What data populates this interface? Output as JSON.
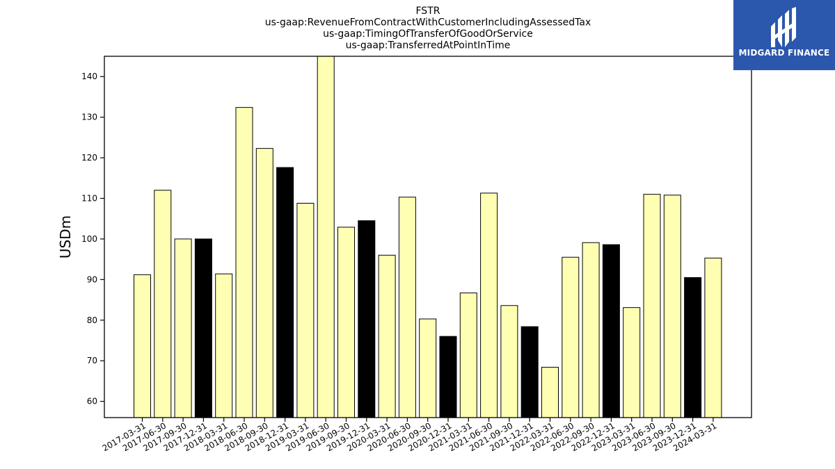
{
  "chart_data": {
    "type": "bar",
    "title_lines": [
      "FSTR",
      "us-gaap:RevenueFromContractWithCustomerIncludingAssessedTax",
      "us-gaap:TimingOfTransferOfGoodOrService",
      "us-gaap:TransferredAtPointInTime"
    ],
    "ylabel": "USDm",
    "xlabel": "",
    "ylim": [
      56,
      145
    ],
    "yticks": [
      60,
      70,
      80,
      90,
      100,
      110,
      120,
      130,
      140
    ],
    "grid": false,
    "categories": [
      "2017-03-31",
      "2017-06-30",
      "2017-09-30",
      "2017-12-31",
      "2018-03-31",
      "2018-06-30",
      "2018-09-30",
      "2018-12-31",
      "2019-03-31",
      "2019-06-30",
      "2019-09-30",
      "2019-12-31",
      "2020-03-31",
      "2020-06-30",
      "2020-09-30",
      "2020-12-31",
      "2021-03-31",
      "2021-06-30",
      "2021-09-30",
      "2021-12-31",
      "2022-03-31",
      "2022-06-30",
      "2022-09-30",
      "2022-12-31",
      "2023-03-31",
      "2023-06-30",
      "2023-09-30",
      "2023-12-31",
      "2024-03-31"
    ],
    "values": [
      91.2,
      112.0,
      100.0,
      100.0,
      91.4,
      132.4,
      122.3,
      117.6,
      108.8,
      145.0,
      102.9,
      104.5,
      96.0,
      110.3,
      80.3,
      76.0,
      86.7,
      111.3,
      83.6,
      78.4,
      68.4,
      95.5,
      99.1,
      98.6,
      83.1,
      111.0,
      110.8,
      90.5,
      95.3
    ],
    "bar_colors": [
      "#ffffb3",
      "#ffffb3",
      "#ffffb3",
      "#000000",
      "#ffffb3",
      "#ffffb3",
      "#ffffb3",
      "#000000",
      "#ffffb3",
      "#ffffb3",
      "#ffffb3",
      "#000000",
      "#ffffb3",
      "#ffffb3",
      "#ffffb3",
      "#000000",
      "#ffffb3",
      "#ffffb3",
      "#ffffb3",
      "#000000",
      "#ffffb3",
      "#ffffb3",
      "#ffffb3",
      "#000000",
      "#ffffb3",
      "#ffffb3",
      "#ffffb3",
      "#000000",
      "#ffffb3"
    ]
  },
  "logo": {
    "text": "MIDGARD FINANCE",
    "background": "#2b57ad",
    "icon": "midgard-logo-mark"
  }
}
